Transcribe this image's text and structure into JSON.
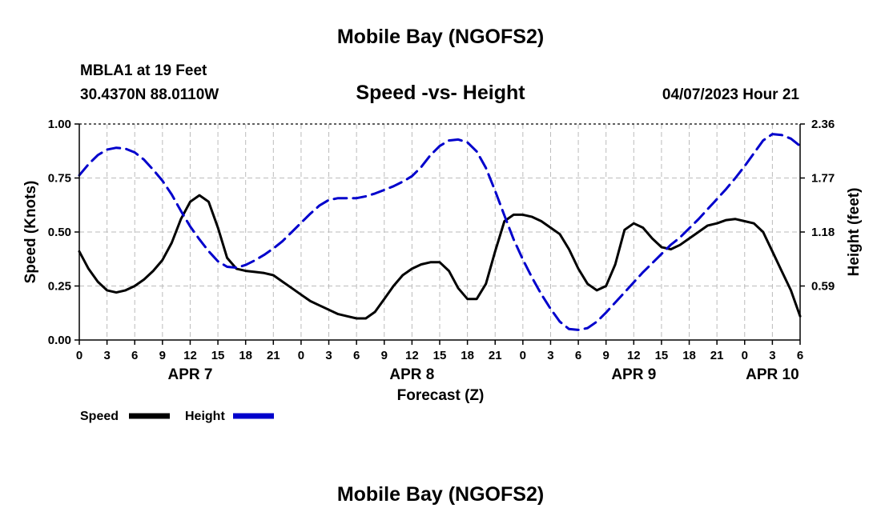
{
  "page": {
    "title": "Mobile Bay (NGOFS2)",
    "footer_title": "Mobile Bay (NGOFS2)",
    "station": "MBLA1 at 19 Feet",
    "coords": "30.4370N  88.0110W",
    "subtitle": "Speed -vs- Height",
    "timestamp": "04/07/2023 Hour 21"
  },
  "chart_data": {
    "type": "line",
    "title": "Speed -vs- Height",
    "xlabel": "Forecast (Z)",
    "ylabel": "Speed (Knots)",
    "y2label": "Height (feet)",
    "x_unit": "hours from APR 7 00Z",
    "xlim": [
      0,
      78
    ],
    "ylim": [
      0,
      1.0
    ],
    "y2lim": [
      0,
      2.36
    ],
    "x_ticks": [
      0,
      3,
      6,
      9,
      12,
      15,
      18,
      21,
      24,
      27,
      30,
      33,
      36,
      39,
      42,
      45,
      48,
      51,
      54,
      57,
      60,
      63,
      66,
      69,
      72,
      75,
      78
    ],
    "x_tick_labels": [
      "0",
      "3",
      "6",
      "9",
      "12",
      "15",
      "18",
      "21",
      "0",
      "3",
      "6",
      "9",
      "12",
      "15",
      "18",
      "21",
      "0",
      "3",
      "6",
      "9",
      "12",
      "15",
      "18",
      "21",
      "0",
      "3",
      "6"
    ],
    "day_labels": [
      {
        "x": 12,
        "label": "APR 7"
      },
      {
        "x": 36,
        "label": "APR 8"
      },
      {
        "x": 60,
        "label": "APR 9"
      },
      {
        "x": 75,
        "label": "APR 10"
      }
    ],
    "y_ticks": [
      0,
      0.25,
      0.5,
      0.75,
      1.0
    ],
    "y_tick_labels": [
      "0.00",
      "0.25",
      "0.50",
      "0.75",
      "1.00"
    ],
    "y2_ticks": [
      0.59,
      1.18,
      1.77,
      2.36
    ],
    "y2_tick_labels": [
      "0.59",
      "1.18",
      "1.77",
      "2.36"
    ],
    "grid": true,
    "legend": [
      {
        "label": "Speed",
        "color": "#000000",
        "style": "solid"
      },
      {
        "label": "Height",
        "color": "#0000cc",
        "style": "dashed"
      }
    ],
    "series": [
      {
        "name": "Speed",
        "axis": "left",
        "color": "#000000",
        "dash": "solid",
        "points": [
          [
            0,
            0.41
          ],
          [
            1,
            0.33
          ],
          [
            2,
            0.27
          ],
          [
            3,
            0.23
          ],
          [
            4,
            0.22
          ],
          [
            5,
            0.23
          ],
          [
            6,
            0.25
          ],
          [
            7,
            0.28
          ],
          [
            8,
            0.32
          ],
          [
            9,
            0.37
          ],
          [
            10,
            0.45
          ],
          [
            11,
            0.56
          ],
          [
            12,
            0.64
          ],
          [
            13,
            0.67
          ],
          [
            14,
            0.64
          ],
          [
            15,
            0.52
          ],
          [
            16,
            0.38
          ],
          [
            17,
            0.33
          ],
          [
            18,
            0.32
          ],
          [
            19,
            0.315
          ],
          [
            20,
            0.31
          ],
          [
            21,
            0.3
          ],
          [
            22,
            0.27
          ],
          [
            23,
            0.24
          ],
          [
            24,
            0.21
          ],
          [
            25,
            0.18
          ],
          [
            26,
            0.16
          ],
          [
            27,
            0.14
          ],
          [
            28,
            0.12
          ],
          [
            29,
            0.11
          ],
          [
            30,
            0.1
          ],
          [
            31,
            0.1
          ],
          [
            32,
            0.13
          ],
          [
            33,
            0.19
          ],
          [
            34,
            0.25
          ],
          [
            35,
            0.3
          ],
          [
            36,
            0.33
          ],
          [
            37,
            0.35
          ],
          [
            38,
            0.36
          ],
          [
            39,
            0.36
          ],
          [
            40,
            0.32
          ],
          [
            41,
            0.24
          ],
          [
            42,
            0.19
          ],
          [
            43,
            0.19
          ],
          [
            44,
            0.26
          ],
          [
            45,
            0.41
          ],
          [
            46,
            0.55
          ],
          [
            47,
            0.58
          ],
          [
            48,
            0.58
          ],
          [
            49,
            0.57
          ],
          [
            50,
            0.55
          ],
          [
            51,
            0.52
          ],
          [
            52,
            0.49
          ],
          [
            53,
            0.42
          ],
          [
            54,
            0.33
          ],
          [
            55,
            0.26
          ],
          [
            56,
            0.23
          ],
          [
            57,
            0.25
          ],
          [
            58,
            0.35
          ],
          [
            59,
            0.51
          ],
          [
            60,
            0.54
          ],
          [
            61,
            0.52
          ],
          [
            62,
            0.47
          ],
          [
            63,
            0.43
          ],
          [
            64,
            0.42
          ],
          [
            65,
            0.44
          ],
          [
            66,
            0.47
          ],
          [
            67,
            0.5
          ],
          [
            68,
            0.53
          ],
          [
            69,
            0.54
          ],
          [
            70,
            0.555
          ],
          [
            71,
            0.56
          ],
          [
            72,
            0.55
          ],
          [
            73,
            0.54
          ],
          [
            74,
            0.5
          ],
          [
            75,
            0.41
          ],
          [
            76,
            0.32
          ],
          [
            77,
            0.23
          ],
          [
            78,
            0.11
          ]
        ]
      },
      {
        "name": "Height",
        "axis": "right",
        "color": "#0000cc",
        "dash": "dashed",
        "points": [
          [
            0,
            1.8
          ],
          [
            1,
            1.92
          ],
          [
            2,
            2.02
          ],
          [
            3,
            2.08
          ],
          [
            4,
            2.1
          ],
          [
            5,
            2.09
          ],
          [
            6,
            2.05
          ],
          [
            7,
            1.97
          ],
          [
            8,
            1.86
          ],
          [
            9,
            1.74
          ],
          [
            10,
            1.59
          ],
          [
            11,
            1.41
          ],
          [
            12,
            1.24
          ],
          [
            13,
            1.1
          ],
          [
            14,
            0.97
          ],
          [
            15,
            0.86
          ],
          [
            16,
            0.8
          ],
          [
            17,
            0.79
          ],
          [
            18,
            0.82
          ],
          [
            19,
            0.87
          ],
          [
            20,
            0.93
          ],
          [
            21,
            1.0
          ],
          [
            22,
            1.08
          ],
          [
            23,
            1.18
          ],
          [
            24,
            1.28
          ],
          [
            25,
            1.38
          ],
          [
            26,
            1.47
          ],
          [
            27,
            1.53
          ],
          [
            28,
            1.55
          ],
          [
            29,
            1.55
          ],
          [
            30,
            1.55
          ],
          [
            31,
            1.57
          ],
          [
            32,
            1.6
          ],
          [
            33,
            1.64
          ],
          [
            34,
            1.68
          ],
          [
            35,
            1.73
          ],
          [
            36,
            1.79
          ],
          [
            37,
            1.89
          ],
          [
            38,
            2.02
          ],
          [
            39,
            2.12
          ],
          [
            40,
            2.18
          ],
          [
            41,
            2.19
          ],
          [
            42,
            2.16
          ],
          [
            43,
            2.06
          ],
          [
            44,
            1.88
          ],
          [
            45,
            1.63
          ],
          [
            46,
            1.36
          ],
          [
            47,
            1.1
          ],
          [
            48,
            0.88
          ],
          [
            49,
            0.68
          ],
          [
            50,
            0.5
          ],
          [
            51,
            0.34
          ],
          [
            52,
            0.2
          ],
          [
            53,
            0.12
          ],
          [
            54,
            0.11
          ],
          [
            55,
            0.13
          ],
          [
            56,
            0.2
          ],
          [
            57,
            0.3
          ],
          [
            58,
            0.41
          ],
          [
            59,
            0.52
          ],
          [
            60,
            0.63
          ],
          [
            61,
            0.74
          ],
          [
            62,
            0.84
          ],
          [
            63,
            0.94
          ],
          [
            64,
            1.04
          ],
          [
            65,
            1.12
          ],
          [
            66,
            1.22
          ],
          [
            67,
            1.32
          ],
          [
            68,
            1.43
          ],
          [
            69,
            1.54
          ],
          [
            70,
            1.65
          ],
          [
            71,
            1.77
          ],
          [
            72,
            1.9
          ],
          [
            73,
            2.04
          ],
          [
            74,
            2.18
          ],
          [
            75,
            2.25
          ],
          [
            76,
            2.24
          ],
          [
            77,
            2.2
          ],
          [
            78,
            2.12
          ]
        ]
      }
    ]
  }
}
